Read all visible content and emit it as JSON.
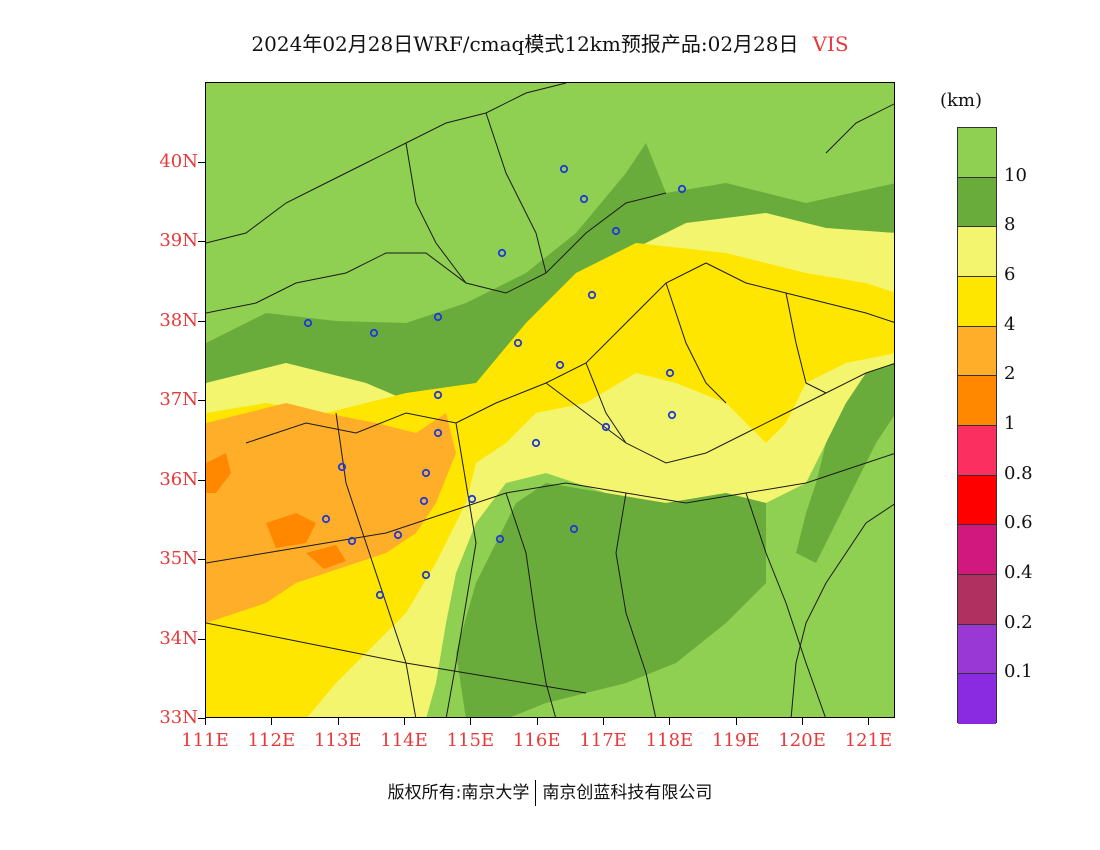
{
  "title": {
    "text": "2024年02月28日WRF/cmaq模式12km预报产品:02月28日",
    "variable": "VIS"
  },
  "map": {
    "lat_labels": [
      "40N",
      "39N",
      "38N",
      "37N",
      "36N",
      "35N",
      "34N",
      "33N"
    ],
    "lon_labels": [
      "111E",
      "112E",
      "113E",
      "114E",
      "115E",
      "116E",
      "117E",
      "118E",
      "119E",
      "120E",
      "121E"
    ],
    "extent": {
      "lon_min": 111,
      "lon_max": 121.4,
      "lat_min": 33,
      "lat_max": 41
    }
  },
  "legend": {
    "unit": "(km)",
    "levels": [
      {
        "label": "10",
        "color": "#8fcf52"
      },
      {
        "label": "8",
        "color": "#6aac3b"
      },
      {
        "label": "6",
        "color": "#f4f56e"
      },
      {
        "label": "4",
        "color": "#ffe600"
      },
      {
        "label": "2",
        "color": "#ffae2a"
      },
      {
        "label": "1",
        "color": "#ff8800"
      },
      {
        "label": "0.8",
        "color": "#fc3060"
      },
      {
        "label": "0.6",
        "color": "#ff0000"
      },
      {
        "label": "0.4",
        "color": "#d0187e"
      },
      {
        "label": "0.2",
        "color": "#b03060"
      },
      {
        "label": "0.1",
        "color": "#9a38d6"
      },
      {
        "label": "",
        "color": "#8a2be2"
      }
    ]
  },
  "footer": {
    "left": "版权所有:南京大学",
    "right": "南京创蓝科技有限公司"
  }
}
